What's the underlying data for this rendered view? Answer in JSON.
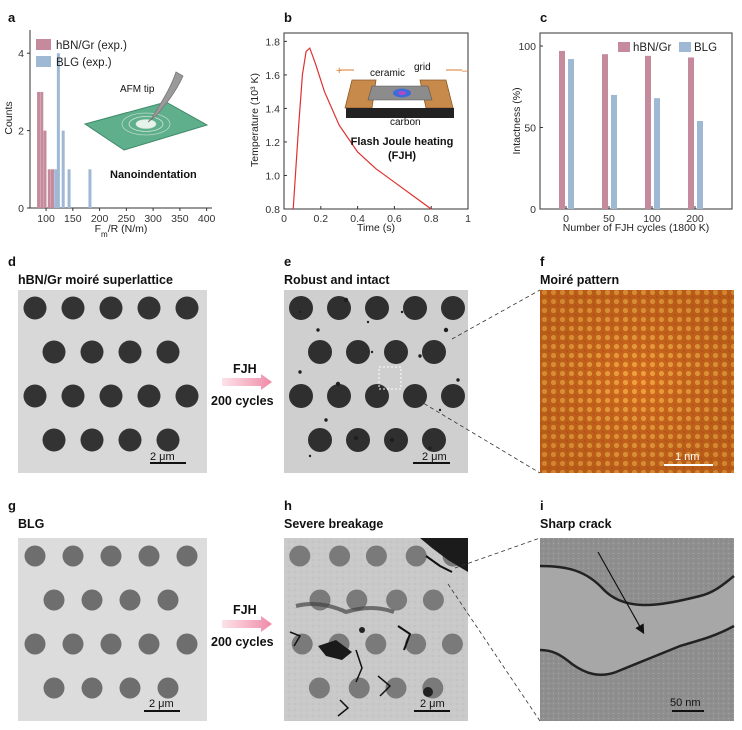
{
  "figure": {
    "panel_letters": [
      "a",
      "b",
      "c",
      "d",
      "e",
      "f",
      "g",
      "h",
      "i"
    ],
    "colors": {
      "hbn_gr": "#c58a9c",
      "blg": "#9fb8d4",
      "curve": "#e03030",
      "arrow": "#f4a3b8",
      "moire_bg": "#d2691e"
    }
  },
  "panel_a": {
    "chart_data": {
      "type": "bar",
      "xlabel": "Fm/R (N/m)",
      "ylabel": "Counts",
      "xlim": [
        70,
        410
      ],
      "ylim": [
        0,
        4.6
      ],
      "xticks": [
        100,
        150,
        200,
        250,
        300,
        350,
        400
      ],
      "yticks": [
        0,
        2,
        4
      ],
      "series": [
        {
          "name": "hBN/Gr (exp.)",
          "x": [
            86,
            92,
            98,
            106,
            112
          ],
          "values": [
            3,
            3,
            2,
            1,
            1
          ]
        },
        {
          "name": "BLG (exp.)",
          "x": [
            118,
            123,
            132,
            143,
            182
          ],
          "values": [
            1,
            4,
            2,
            1,
            1
          ]
        }
      ]
    },
    "xlabel_main": "F",
    "xlabel_sub": "m",
    "xlabel_rest": "/R (N/m)",
    "inset_tip_label": "AFM tip",
    "inset_caption": "Nanoindentation"
  },
  "panel_b": {
    "chart_data": {
      "type": "line",
      "xlabel": "Time (s)",
      "ylabel": "Temperature (10³ K)",
      "xlim": [
        0,
        1
      ],
      "ylim": [
        0.8,
        1.85
      ],
      "xticks": [
        0,
        0.2,
        0.4,
        0.6,
        0.8,
        1
      ],
      "yticks": [
        0.8,
        1.0,
        1.2,
        1.4,
        1.6,
        1.8
      ],
      "series": [
        {
          "x": [
            0.05,
            0.08,
            0.1,
            0.12,
            0.14,
            0.17,
            0.22,
            0.3,
            0.4,
            0.5,
            0.6,
            0.7,
            0.8
          ],
          "values": [
            0.8,
            1.3,
            1.6,
            1.74,
            1.76,
            1.67,
            1.5,
            1.3,
            1.14,
            1.04,
            0.96,
            0.88,
            0.8
          ]
        }
      ]
    },
    "inset_labels": {
      "ceramic": "ceramic",
      "grid": "grid",
      "carbon": "carbon",
      "plus": "+",
      "minus": "–"
    },
    "inset_caption_1": "Flash Joule heating",
    "inset_caption_2": "(FJH)"
  },
  "panel_c": {
    "chart_data": {
      "type": "bar",
      "xlabel": "Number of FJH cycles (1800 K)",
      "ylabel": "Intactness (%)",
      "ylim": [
        0,
        108
      ],
      "categories": [
        "0",
        "50",
        "100",
        "200"
      ],
      "yticks": [
        0,
        50,
        100
      ],
      "series": [
        {
          "name": "hBN/Gr",
          "values": [
            97,
            95,
            94,
            93
          ]
        },
        {
          "name": "BLG",
          "values": [
            92,
            70,
            68,
            54
          ]
        }
      ]
    }
  },
  "panel_d": {
    "title": "hBN/Gr moiré superlattice",
    "scale": "2 μm"
  },
  "panel_e": {
    "title": "Robust and intact",
    "scale": "2 μm"
  },
  "panel_f": {
    "title": "Moiré pattern",
    "scale": "1 nm"
  },
  "panel_g": {
    "title": "BLG",
    "scale": "2 μm"
  },
  "panel_h": {
    "title": "Severe breakage",
    "scale": "2 μm"
  },
  "panel_i": {
    "title": "Sharp crack",
    "scale": "50 nm"
  },
  "arrow_top": {
    "line1": "FJH",
    "line2": "200 cycles"
  },
  "arrow_bottom": {
    "line1": "FJH",
    "line2": "200 cycles"
  }
}
